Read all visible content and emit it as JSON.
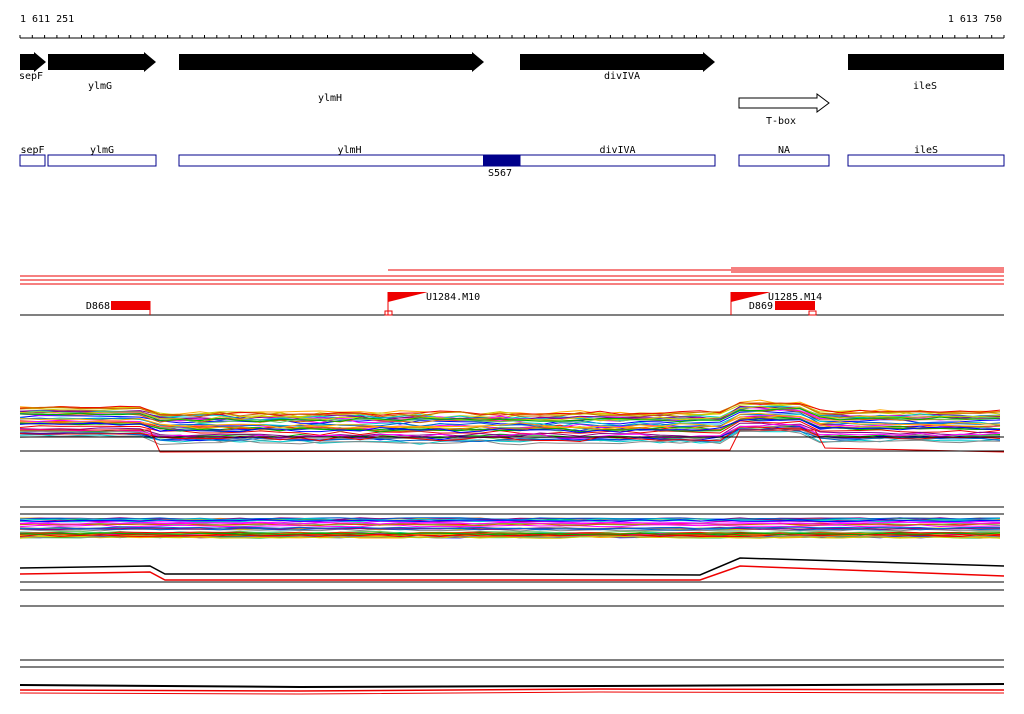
{
  "header": {
    "start": "1 611 251",
    "end": "1 613 750"
  },
  "genes": [
    "sepF",
    "ylmG",
    "ylmH",
    "divIVA",
    "ileS"
  ],
  "terminator": "T-box",
  "annotations": [
    "sepF",
    "ylmG",
    "ylmH",
    "divIVA",
    "NA",
    "ileS"
  ],
  "annotation_highlight": "S567",
  "features": [
    "D868",
    "U1284.M10",
    "D869",
    "U1285.M14"
  ]
}
